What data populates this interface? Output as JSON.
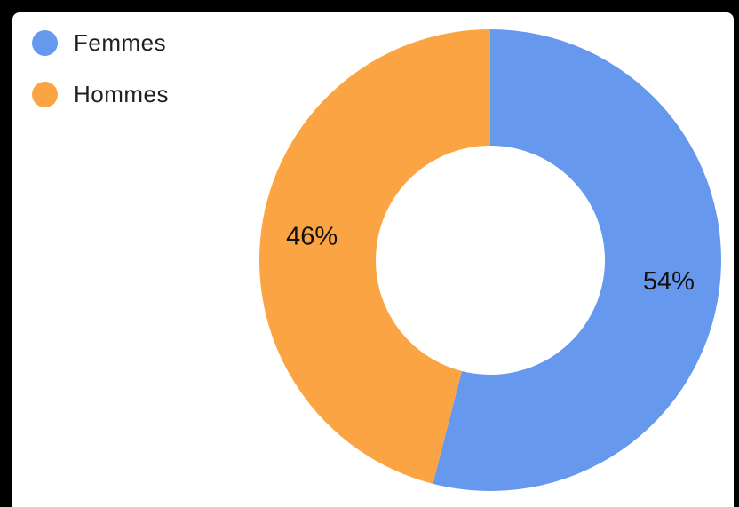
{
  "chart_data": {
    "type": "pie",
    "variant": "donut",
    "categories": [
      "Femmes",
      "Hommes"
    ],
    "values": [
      54,
      46
    ],
    "labels": [
      "54%",
      "46%"
    ],
    "colors": [
      "#6699ee",
      "#fba443"
    ],
    "legend_position": "top-left"
  }
}
